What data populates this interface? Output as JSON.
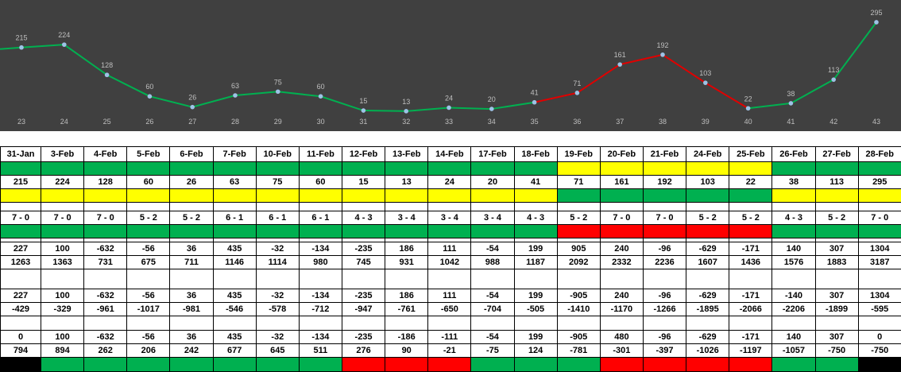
{
  "chart_data": {
    "type": "line",
    "x": [
      23,
      24,
      25,
      26,
      27,
      28,
      29,
      30,
      31,
      32,
      33,
      34,
      35,
      36,
      37,
      38,
      39,
      40,
      41,
      42,
      43
    ],
    "values": [
      215,
      224,
      128,
      60,
      26,
      63,
      75,
      60,
      15,
      13,
      24,
      20,
      41,
      71,
      161,
      192,
      103,
      22,
      38,
      113,
      295
    ],
    "segment_colors": [
      "green",
      "green",
      "green",
      "green",
      "green",
      "green",
      "green",
      "green",
      "green",
      "green",
      "green",
      "green",
      "red",
      "red",
      "red",
      "red",
      "red",
      "green",
      "green",
      "green"
    ],
    "colors": {
      "green": "#00b050",
      "red": "#e00000",
      "marker": "#9dc3e6",
      "background": "#404040",
      "label": "#bfbfbf"
    },
    "ylim": [
      0,
      300
    ]
  },
  "table": {
    "dates": [
      "31-Jan",
      "3-Feb",
      "4-Feb",
      "5-Feb",
      "6-Feb",
      "7-Feb",
      "10-Feb",
      "11-Feb",
      "12-Feb",
      "13-Feb",
      "14-Feb",
      "17-Feb",
      "18-Feb",
      "19-Feb",
      "20-Feb",
      "21-Feb",
      "24-Feb",
      "25-Feb",
      "26-Feb",
      "27-Feb",
      "28-Feb"
    ],
    "color_row_1": [
      "green",
      "green",
      "green",
      "green",
      "green",
      "green",
      "green",
      "green",
      "green",
      "green",
      "green",
      "green",
      "green",
      "yellow",
      "yellow",
      "yellow",
      "yellow",
      "yellow",
      "green",
      "green",
      "green"
    ],
    "values": [
      "215",
      "224",
      "128",
      "60",
      "26",
      "63",
      "75",
      "60",
      "15",
      "13",
      "24",
      "20",
      "41",
      "71",
      "161",
      "192",
      "103",
      "22",
      "38",
      "113",
      "295"
    ],
    "color_row_2": [
      "yellow",
      "yellow",
      "yellow",
      "yellow",
      "yellow",
      "yellow",
      "yellow",
      "yellow",
      "yellow",
      "yellow",
      "yellow",
      "yellow",
      "yellow",
      "green",
      "green",
      "green",
      "green",
      "green",
      "yellow",
      "yellow",
      "yellow"
    ],
    "scores": [
      "7 - 0",
      "7 - 0",
      "7 - 0",
      "5 - 2",
      "5 - 2",
      "6 - 1",
      "6 - 1",
      "6 - 1",
      "4 - 3",
      "3 - 4",
      "3 - 4",
      "3 - 4",
      "4 - 3",
      "5 - 2",
      "7 - 0",
      "7 - 0",
      "5 - 2",
      "5 - 2",
      "4 - 3",
      "5 - 2",
      "7 - 0"
    ],
    "color_row_3": [
      "green",
      "green",
      "green",
      "green",
      "green",
      "green",
      "green",
      "green",
      "green",
      "green",
      "green",
      "green",
      "green",
      "red",
      "red",
      "red",
      "red",
      "red",
      "green",
      "green",
      "green"
    ],
    "row_a1": [
      "227",
      "100",
      "-632",
      "-56",
      "36",
      "435",
      "-32",
      "-134",
      "-235",
      "186",
      "111",
      "-54",
      "199",
      "905",
      "240",
      "-96",
      "-629",
      "-171",
      "140",
      "307",
      "1304"
    ],
    "row_a2": [
      "1263",
      "1363",
      "731",
      "675",
      "711",
      "1146",
      "1114",
      "980",
      "745",
      "931",
      "1042",
      "988",
      "1187",
      "2092",
      "2332",
      "2236",
      "1607",
      "1436",
      "1576",
      "1883",
      "3187"
    ],
    "row_b1": [
      "227",
      "100",
      "-632",
      "-56",
      "36",
      "435",
      "-32",
      "-134",
      "-235",
      "186",
      "111",
      "-54",
      "199",
      "-905",
      "240",
      "-96",
      "-629",
      "-171",
      "-140",
      "307",
      "1304"
    ],
    "row_b2": [
      "-429",
      "-329",
      "-961",
      "-1017",
      "-981",
      "-546",
      "-578",
      "-712",
      "-947",
      "-761",
      "-650",
      "-704",
      "-505",
      "-1410",
      "-1170",
      "-1266",
      "-1895",
      "-2066",
      "-2206",
      "-1899",
      "-595"
    ],
    "row_c1": [
      "0",
      "100",
      "-632",
      "-56",
      "36",
      "435",
      "-32",
      "-134",
      "-235",
      "-186",
      "-111",
      "-54",
      "199",
      "-905",
      "480",
      "-96",
      "-629",
      "-171",
      "140",
      "307",
      "0"
    ],
    "row_c2": [
      "794",
      "894",
      "262",
      "206",
      "242",
      "677",
      "645",
      "511",
      "276",
      "90",
      "-21",
      "-75",
      "124",
      "-781",
      "-301",
      "-397",
      "-1026",
      "-1197",
      "-1057",
      "-750",
      "-750"
    ],
    "color_row_4": [
      "black",
      "green",
      "green",
      "green",
      "green",
      "green",
      "green",
      "green",
      "red",
      "red",
      "red",
      "green",
      "green",
      "green",
      "red",
      "red",
      "red",
      "red",
      "green",
      "green",
      "black"
    ]
  }
}
